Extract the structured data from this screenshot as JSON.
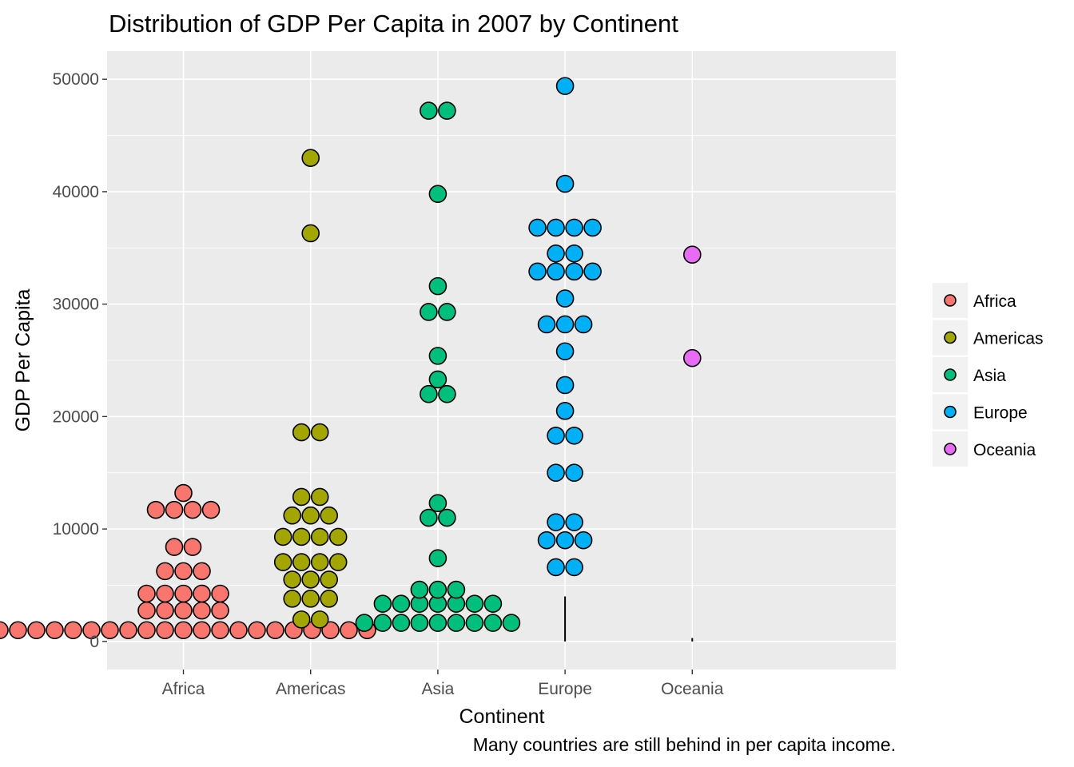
{
  "chart_data": {
    "type": "dotplot",
    "title": "Distribution of GDP Per Capita in 2007 by Continent",
    "xlabel": "Continent",
    "ylabel": "GDP Per Capita",
    "caption": "Many countries are still behind in per capita income.",
    "categories": [
      "Africa",
      "Americas",
      "Asia",
      "Europe",
      "Oceania"
    ],
    "ylim": [
      -2500,
      52500
    ],
    "yticks": [
      0,
      10000,
      20000,
      30000,
      40000,
      50000
    ],
    "ytick_labels": [
      "0",
      "10000",
      "20000",
      "30000",
      "40000",
      "50000"
    ],
    "grid": true,
    "legend_position": "right",
    "series": [
      {
        "name": "Africa",
        "color": "#F8766D",
        "bins": [
          {
            "value": 1000,
            "count": 21
          },
          {
            "value": 2750,
            "count": 5
          },
          {
            "value": 4250,
            "count": 5
          },
          {
            "value": 6250,
            "count": 3
          },
          {
            "value": 8400,
            "count": 2
          },
          {
            "value": 11700,
            "count": 4
          },
          {
            "value": 13200,
            "count": 1
          }
        ]
      },
      {
        "name": "Americas",
        "color": "#A3A500",
        "bins": [
          {
            "value": 1950,
            "count": 2
          },
          {
            "value": 3800,
            "count": 3
          },
          {
            "value": 5500,
            "count": 3
          },
          {
            "value": 7050,
            "count": 4
          },
          {
            "value": 9300,
            "count": 4
          },
          {
            "value": 11200,
            "count": 3
          },
          {
            "value": 12850,
            "count": 2
          },
          {
            "value": 18600,
            "count": 2
          },
          {
            "value": 36300,
            "count": 1
          },
          {
            "value": 43000,
            "count": 1
          }
        ]
      },
      {
        "name": "Asia",
        "color": "#00BF7D",
        "bins": [
          {
            "value": 1650,
            "count": 9
          },
          {
            "value": 3350,
            "count": 7
          },
          {
            "value": 4600,
            "count": 3
          },
          {
            "value": 7400,
            "count": 1
          },
          {
            "value": 11000,
            "count": 2
          },
          {
            "value": 12300,
            "count": 1
          },
          {
            "value": 22000,
            "count": 2
          },
          {
            "value": 23300,
            "count": 1
          },
          {
            "value": 25400,
            "count": 1
          },
          {
            "value": 29300,
            "count": 2
          },
          {
            "value": 31600,
            "count": 1
          },
          {
            "value": 39800,
            "count": 1
          },
          {
            "value": 47200,
            "count": 2
          }
        ]
      },
      {
        "name": "Europe",
        "color": "#00B0F6",
        "bins": [
          {
            "value": 6600,
            "count": 2
          },
          {
            "value": 9000,
            "count": 3
          },
          {
            "value": 10600,
            "count": 2
          },
          {
            "value": 15000,
            "count": 2
          },
          {
            "value": 18300,
            "count": 2
          },
          {
            "value": 20500,
            "count": 1
          },
          {
            "value": 22800,
            "count": 1
          },
          {
            "value": 25800,
            "count": 1
          },
          {
            "value": 28200,
            "count": 3
          },
          {
            "value": 30500,
            "count": 1
          },
          {
            "value": 32900,
            "count": 4
          },
          {
            "value": 34500,
            "count": 2
          },
          {
            "value": 36800,
            "count": 4
          },
          {
            "value": 40700,
            "count": 1
          },
          {
            "value": 49400,
            "count": 1
          }
        ]
      },
      {
        "name": "Oceania",
        "color": "#E76BF3",
        "bins": [
          {
            "value": 25200,
            "count": 1
          },
          {
            "value": 34400,
            "count": 1
          }
        ]
      }
    ],
    "whiskers": [
      {
        "category": "Europe",
        "from": 0,
        "to": 4000
      },
      {
        "category": "Oceania",
        "from": 0,
        "to": 300
      }
    ]
  }
}
